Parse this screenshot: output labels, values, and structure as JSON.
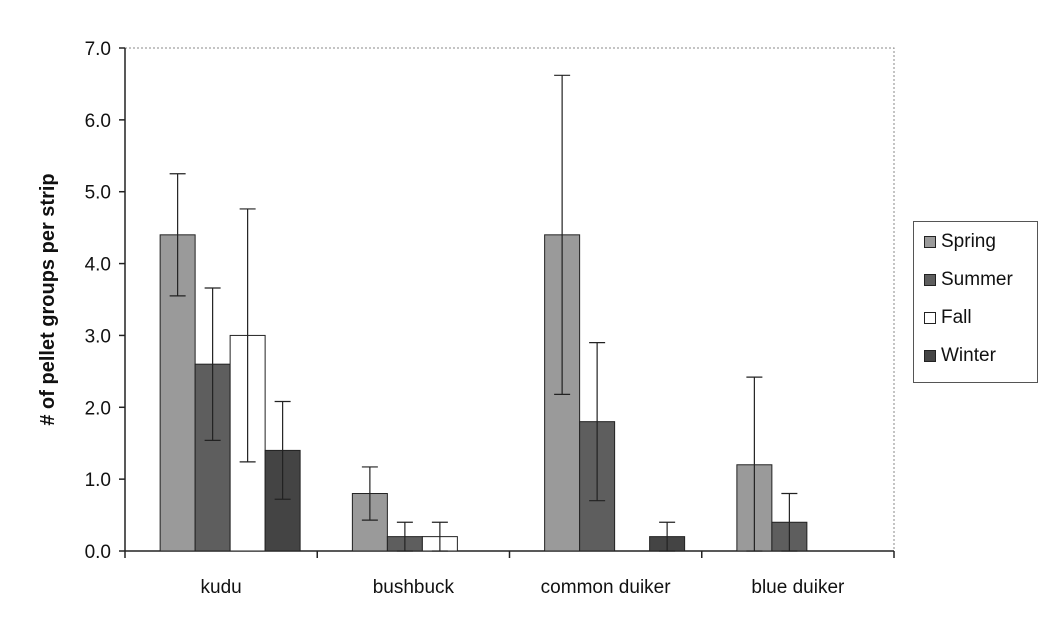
{
  "chart_data": {
    "type": "bar",
    "title": "",
    "xlabel": "",
    "ylabel": "# of pellet groups per strip",
    "ylim": [
      0,
      7
    ],
    "yticks": [
      "0.0",
      "1.0",
      "2.0",
      "3.0",
      "4.0",
      "5.0",
      "6.0",
      "7.0"
    ],
    "categories": [
      "kudu",
      "bushbuck",
      "common duiker",
      "blue duiker"
    ],
    "grid": false,
    "legend_position": "right",
    "error_bars": true,
    "series": [
      {
        "name": "Spring",
        "color": "#9a9a9a",
        "values": [
          4.4,
          0.8,
          4.4,
          1.2
        ],
        "errors": [
          0.85,
          0.37,
          2.22,
          1.22
        ]
      },
      {
        "name": "Summer",
        "color": "#5e5e5e",
        "values": [
          2.6,
          0.2,
          1.8,
          0.4
        ],
        "errors": [
          1.06,
          0.2,
          1.1,
          0.4
        ]
      },
      {
        "name": "Fall",
        "color": "#ffffff",
        "values": [
          3.0,
          0.2,
          0.0,
          0.0
        ],
        "errors": [
          1.76,
          0.2,
          0,
          0
        ]
      },
      {
        "name": "Winter",
        "color": "#444444",
        "values": [
          1.4,
          0.0,
          0.2,
          0.0
        ],
        "errors": [
          0.68,
          0,
          0.2,
          0
        ]
      }
    ]
  }
}
